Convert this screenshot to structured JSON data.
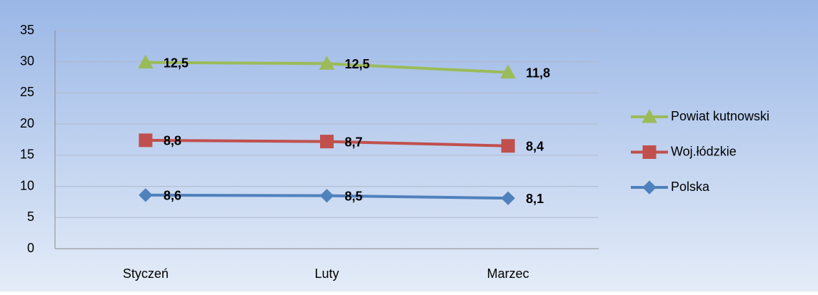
{
  "chart_data": {
    "type": "line",
    "stacked": true,
    "categories": [
      "Styczeń",
      "Luty",
      "Marzec"
    ],
    "series": [
      {
        "name": "Polska",
        "color": "#4f81bd",
        "marker": "diamond",
        "values": [
          8.6,
          8.5,
          8.1
        ],
        "value_labels": [
          "8,6",
          "8,5",
          "8,1"
        ]
      },
      {
        "name": "Woj.łódzkie",
        "color": "#c0504d",
        "marker": "square",
        "values": [
          8.8,
          8.7,
          8.4
        ],
        "value_labels": [
          "8,8",
          "8,7",
          "8,4"
        ]
      },
      {
        "name": "Powiat kutnowski",
        "color": "#9bbb59",
        "marker": "triangle",
        "values": [
          12.5,
          12.5,
          11.8
        ],
        "value_labels": [
          "12,5",
          "12,5",
          "11,8"
        ]
      }
    ],
    "ylim": [
      0,
      35
    ],
    "yticks": [
      0,
      5,
      10,
      15,
      20,
      25,
      30,
      35
    ],
    "grid": true,
    "legend": "right"
  }
}
